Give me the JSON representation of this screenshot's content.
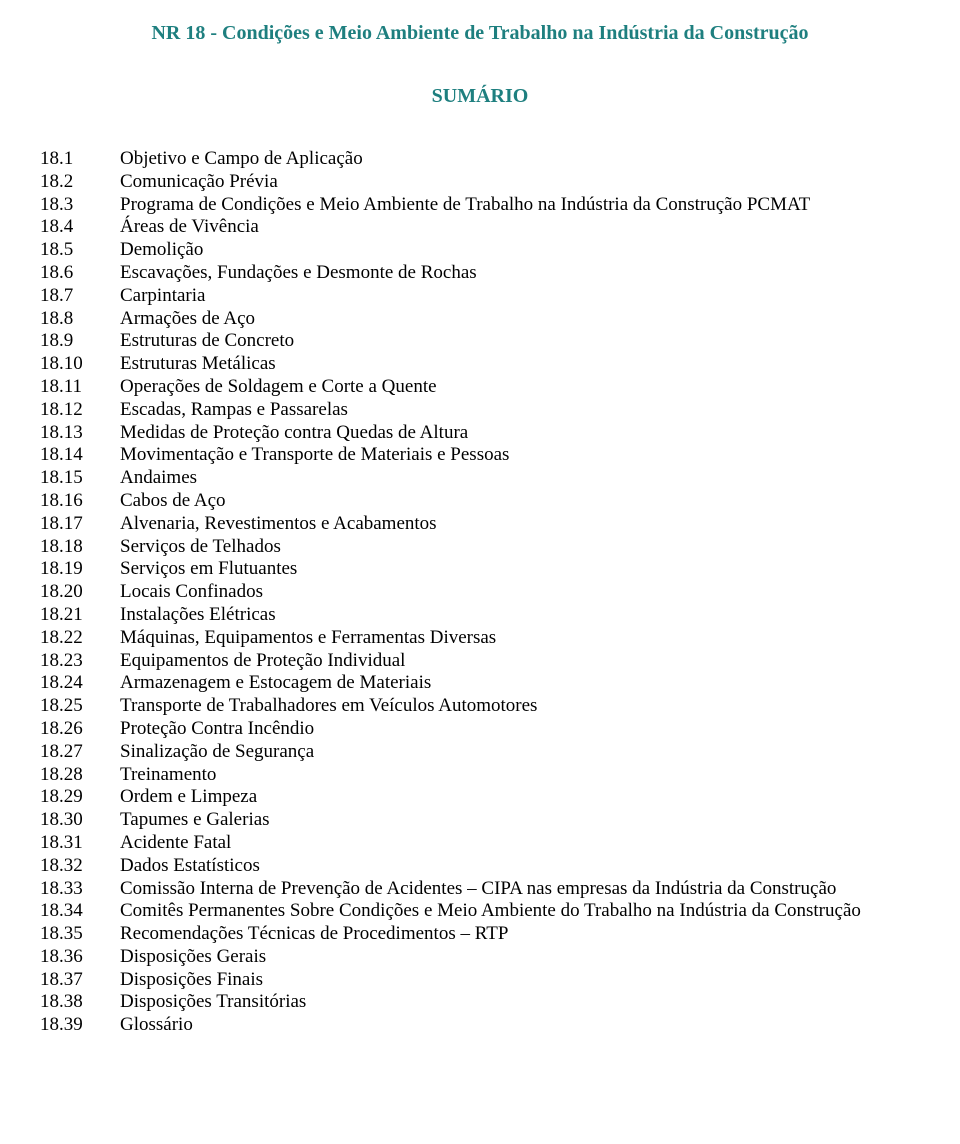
{
  "colors": {
    "teal": "#1e7f7f",
    "black": "#000000",
    "background": "#ffffff"
  },
  "typography": {
    "family": "Times New Roman",
    "title_fontsize_pt": 15,
    "body_fontsize_pt": 14,
    "title_weight": "bold"
  },
  "title": "NR 18 - Condições e Meio Ambiente de Trabalho na Indústria da Construção",
  "subtitle": "SUMÁRIO",
  "toc": [
    {
      "num": "18.1",
      "label": "Objetivo e Campo de Aplicação"
    },
    {
      "num": "18.2",
      "label": "Comunicação Prévia"
    },
    {
      "num": "18.3",
      "label": "Programa de Condições e Meio Ambiente de Trabalho na Indústria da Construção PCMAT"
    },
    {
      "num": "18.4",
      "label": "Áreas de Vivência"
    },
    {
      "num": "18.5",
      "label": "Demolição"
    },
    {
      "num": "18.6",
      "label": "Escavações, Fundações e Desmonte de Rochas"
    },
    {
      "num": "18.7",
      "label": "Carpintaria"
    },
    {
      "num": "18.8",
      "label": "Armações de Aço"
    },
    {
      "num": "18.9",
      "label": "Estruturas de Concreto"
    },
    {
      "num": "18.10",
      "label": "Estruturas Metálicas"
    },
    {
      "num": "18.11",
      "label": "Operações de Soldagem e Corte a Quente"
    },
    {
      "num": "18.12",
      "label": "Escadas, Rampas e Passarelas"
    },
    {
      "num": "18.13",
      "label": "Medidas de Proteção contra Quedas de Altura"
    },
    {
      "num": "18.14",
      "label": "Movimentação e Transporte de Materiais e Pessoas"
    },
    {
      "num": "18.15",
      "label": "Andaimes"
    },
    {
      "num": "18.16",
      "label": "Cabos de Aço"
    },
    {
      "num": "18.17",
      "label": "Alvenaria, Revestimentos e Acabamentos"
    },
    {
      "num": "18.18",
      "label": "Serviços de Telhados"
    },
    {
      "num": "18.19",
      "label": "Serviços em Flutuantes"
    },
    {
      "num": "18.20",
      "label": "Locais Confinados"
    },
    {
      "num": "18.21",
      "label": "Instalações Elétricas"
    },
    {
      "num": "18.22",
      "label": "Máquinas, Equipamentos e Ferramentas Diversas"
    },
    {
      "num": "18.23",
      "label": "Equipamentos de Proteção Individual"
    },
    {
      "num": "18.24",
      "label": "Armazenagem e Estocagem de Materiais"
    },
    {
      "num": "18.25",
      "label": "Transporte de Trabalhadores em Veículos Automotores"
    },
    {
      "num": "18.26",
      "label": "Proteção Contra Incêndio"
    },
    {
      "num": "18.27",
      "label": "Sinalização de Segurança"
    },
    {
      "num": "18.28",
      "label": "Treinamento"
    },
    {
      "num": "18.29",
      "label": "Ordem e Limpeza"
    },
    {
      "num": "18.30",
      "label": "Tapumes e Galerias"
    },
    {
      "num": "18.31",
      "label": "Acidente Fatal"
    },
    {
      "num": "18.32",
      "label": "Dados Estatísticos"
    },
    {
      "num": "18.33",
      "label": "Comissão Interna de Prevenção de Acidentes – CIPA nas empresas da Indústria da Construção"
    },
    {
      "num": "18.34",
      "label": "Comitês Permanentes Sobre Condições e Meio Ambiente do Trabalho na Indústria da Construção"
    },
    {
      "num": "18.35",
      "label": "Recomendações Técnicas de Procedimentos – RTP"
    },
    {
      "num": "18.36",
      "label": "Disposições Gerais"
    },
    {
      "num": "18.37",
      "label": "Disposições Finais"
    },
    {
      "num": "18.38",
      "label": "Disposições Transitórias"
    },
    {
      "num": "18.39",
      "label": "Glossário"
    }
  ]
}
